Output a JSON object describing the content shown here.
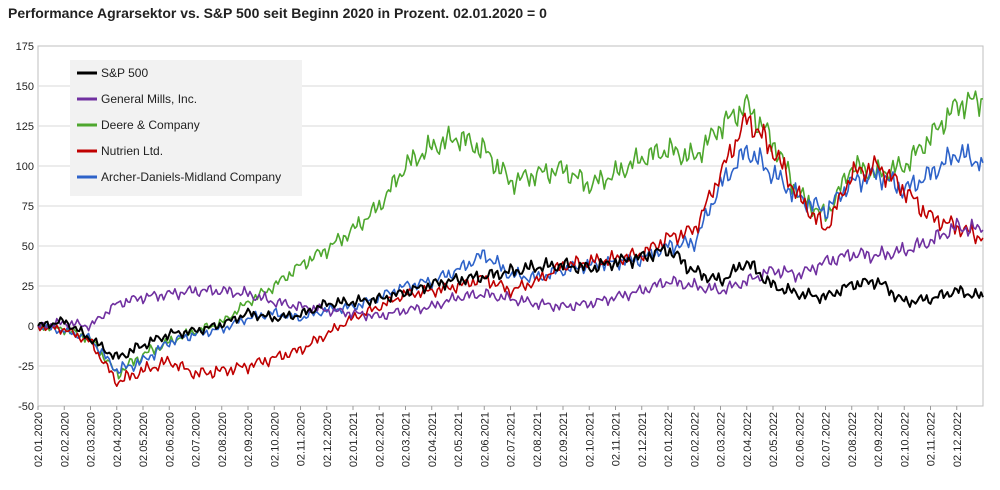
{
  "chart_data": {
    "type": "line",
    "title": "Performance Agrarsektor vs. S&P 500 seit Beginn 2020 in Prozent. 02.01.2020 = 0",
    "xlabel": "",
    "ylabel": "",
    "ylim": [
      -50,
      175
    ],
    "yticks": [
      -50,
      -25,
      0,
      25,
      50,
      75,
      100,
      125,
      150,
      175
    ],
    "grid": true,
    "legend_position": "top-left",
    "x_tick_labels": [
      "02.01.2020",
      "02.02.2020",
      "02.03.2020",
      "02.04.2020",
      "02.05.2020",
      "02.06.2020",
      "02.07.2020",
      "02.08.2020",
      "02.09.2020",
      "02.10.2020",
      "02.11.2020",
      "02.12.2020",
      "02.01.2021",
      "02.02.2021",
      "02.03.2021",
      "02.04.2021",
      "02.05.2021",
      "02.06.2021",
      "02.07.2021",
      "02.08.2021",
      "02.09.2021",
      "02.10.2021",
      "02.11.2021",
      "02.12.2021",
      "02.01.2022",
      "02.02.2022",
      "02.03.2022",
      "02.04.2022",
      "02.05.2022",
      "02.06.2022",
      "02.07.2022",
      "02.08.2022",
      "02.09.2022",
      "02.10.2022",
      "02.11.2022",
      "02.12.2022"
    ],
    "x": [
      "2020-01",
      "2020-02",
      "2020-03",
      "2020-04",
      "2020-05",
      "2020-06",
      "2020-07",
      "2020-08",
      "2020-09",
      "2020-10",
      "2020-11",
      "2020-12",
      "2021-01",
      "2021-02",
      "2021-03",
      "2021-04",
      "2021-05",
      "2021-06",
      "2021-07",
      "2021-08",
      "2021-09",
      "2021-10",
      "2021-11",
      "2021-12",
      "2022-01",
      "2022-02",
      "2022-03",
      "2022-04",
      "2022-05",
      "2022-06",
      "2022-07",
      "2022-08",
      "2022-09",
      "2022-10",
      "2022-11",
      "2022-12",
      "2022-12-30"
    ],
    "series": [
      {
        "name": "S&P 500",
        "color": "#000000",
        "values": [
          0,
          3,
          -8,
          -20,
          -12,
          -5,
          -3,
          1,
          8,
          5,
          7,
          14,
          15,
          17,
          21,
          26,
          29,
          31,
          34,
          37,
          38,
          36,
          40,
          43,
          48,
          34,
          28,
          40,
          25,
          20,
          18,
          26,
          28,
          15,
          17,
          22,
          18
        ]
      },
      {
        "name": "General Mills, Inc.",
        "color": "#7030a0",
        "values": [
          0,
          2,
          0,
          14,
          18,
          20,
          22,
          22,
          20,
          15,
          12,
          10,
          8,
          6,
          10,
          12,
          18,
          20,
          17,
          14,
          12,
          14,
          18,
          22,
          28,
          25,
          22,
          28,
          35,
          32,
          40,
          45,
          44,
          47,
          53,
          62,
          60
        ]
      },
      {
        "name": "Deere & Company",
        "color": "#4ea72e",
        "values": [
          0,
          -2,
          -8,
          -30,
          -18,
          -10,
          -3,
          2,
          15,
          25,
          38,
          48,
          60,
          75,
          100,
          112,
          118,
          110,
          90,
          95,
          98,
          88,
          95,
          105,
          110,
          105,
          125,
          138,
          115,
          82,
          68,
          100,
          95,
          100,
          118,
          138,
          142
        ]
      },
      {
        "name": "Nutrien Ltd.",
        "color": "#c00000",
        "values": [
          0,
          -2,
          -10,
          -35,
          -28,
          -22,
          -30,
          -28,
          -25,
          -20,
          -15,
          -5,
          5,
          12,
          20,
          22,
          25,
          30,
          22,
          28,
          38,
          40,
          42,
          45,
          55,
          60,
          95,
          130,
          110,
          80,
          60,
          95,
          100,
          85,
          68,
          62,
          55
        ]
      },
      {
        "name": "Archer-Daniels-Midland Company",
        "color": "#2e63c9",
        "values": [
          0,
          -3,
          -8,
          -28,
          -22,
          -10,
          -5,
          -2,
          5,
          8,
          5,
          10,
          12,
          18,
          25,
          28,
          35,
          45,
          32,
          30,
          35,
          38,
          40,
          42,
          50,
          52,
          88,
          110,
          95,
          80,
          72,
          90,
          95,
          85,
          95,
          108,
          102
        ]
      }
    ]
  }
}
